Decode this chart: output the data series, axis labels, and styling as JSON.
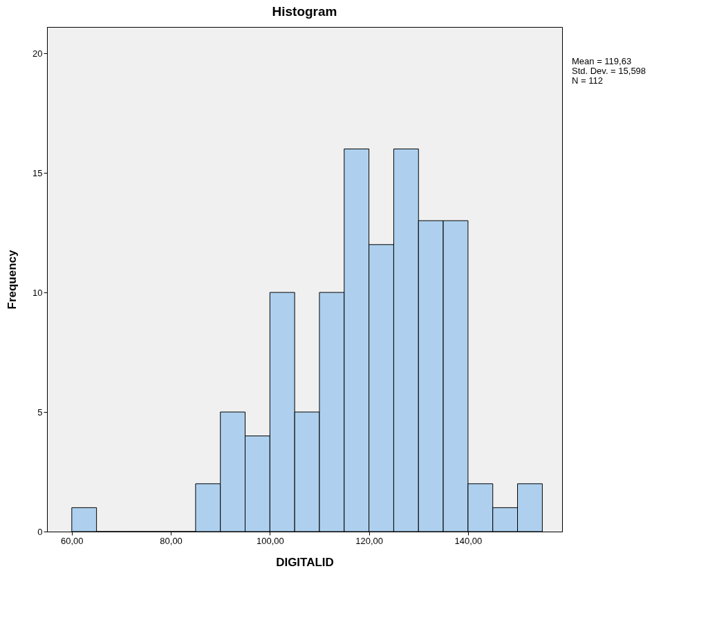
{
  "chart_data": {
    "type": "histogram",
    "title": "Histogram",
    "xlabel": "DIGITALID",
    "ylabel": "Frequency",
    "bins": [
      60,
      65,
      70,
      75,
      80,
      85,
      90,
      95,
      100,
      105,
      110,
      115,
      120,
      125,
      130,
      135,
      140,
      145,
      150,
      155
    ],
    "values": [
      1,
      0,
      0,
      0,
      0,
      2,
      5,
      4,
      10,
      5,
      10,
      16,
      12,
      16,
      13,
      13,
      2,
      1,
      2
    ],
    "color": "#aed0ee",
    "xlim": [
      55,
      159
    ],
    "xticks": [
      {
        "value": 60,
        "label": "60,00"
      },
      {
        "value": 80,
        "label": "80,00"
      },
      {
        "value": 100,
        "label": "100,00"
      },
      {
        "value": 120,
        "label": "120,00"
      },
      {
        "value": 140,
        "label": "140,00"
      }
    ],
    "ylim": [
      0,
      21.1
    ],
    "yticks": [
      0,
      5,
      10,
      15,
      20
    ],
    "grid": false,
    "annotations": [
      "Mean = 119,63",
      "Std. Dev. = 15,598",
      "N = 112"
    ]
  }
}
